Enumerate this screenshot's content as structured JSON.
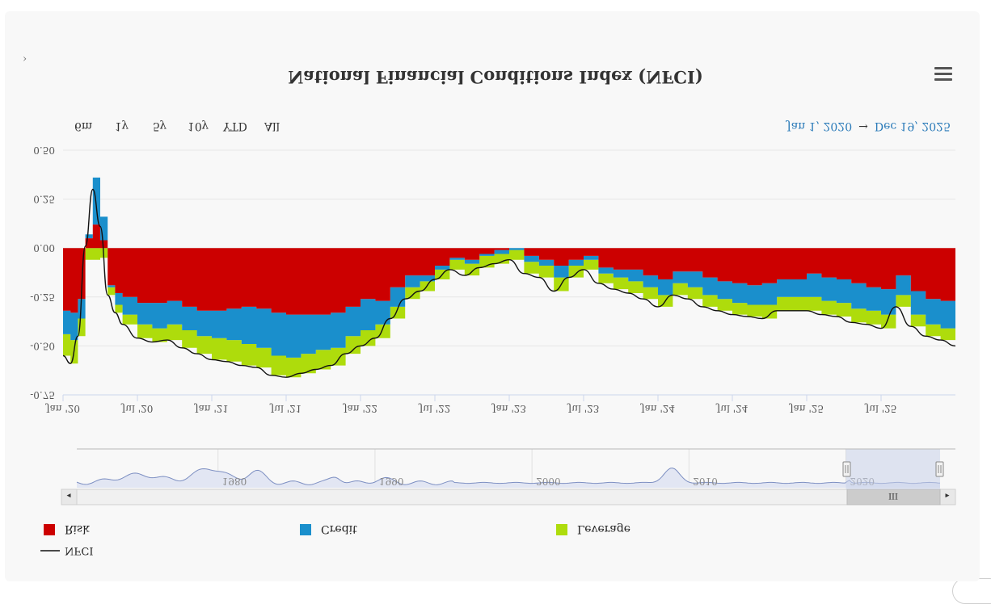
{
  "page": {
    "title": "National Financial Conditions Index (NFCI)",
    "expand_glyph": "›",
    "menu_icon": "hamburger-menu-icon"
  },
  "range_selector": {
    "buttons": [
      "6m",
      "1y",
      "5y",
      "10y",
      "YTD",
      "All"
    ],
    "from": "Jan 1, 2020",
    "arrow": "→",
    "to": "Dec 19, 2025"
  },
  "navigator": {
    "year_labels": [
      "1980",
      "1990",
      "2000",
      "2010",
      "2020"
    ],
    "left_arrow": "◂",
    "right_arrow": "▸",
    "grip": "III",
    "selection_start_year": 2020,
    "selection_end_year": 2026,
    "span": [
      1971,
      2026
    ]
  },
  "colors": {
    "risk": "#cc0000",
    "credit": "#1a8fcc",
    "leverage": "#aedc0c",
    "nfci": "#111111",
    "date_text": "#2b7bb9"
  },
  "chart_data": {
    "type": "area",
    "title": "National Financial Conditions Index (NFCI)",
    "stacked": true,
    "xlabel": "",
    "ylabel": "",
    "ylim": [
      -0.75,
      0.5
    ],
    "y_axis_inverted": true,
    "y_ticks": [
      "-0.75",
      "-0.50",
      "-0.25",
      "0.00",
      "0.25",
      "0.50"
    ],
    "x_ticks": [
      "Jan '20",
      "Jul '20",
      "Jan '21",
      "Jul '21",
      "Jan '22",
      "Jul '22",
      "Jan '23",
      "Jul '23",
      "Jan '24",
      "Jul '24",
      "Jan '25",
      "Jul '25"
    ],
    "x_range": [
      2020.0,
      2026.0
    ],
    "x": [
      2020.0,
      2020.05,
      2020.1,
      2020.15,
      2020.2,
      2020.25,
      2020.3,
      2020.35,
      2020.4,
      2020.5,
      2020.6,
      2020.7,
      2020.8,
      2020.9,
      2021.0,
      2021.1,
      2021.2,
      2021.3,
      2021.4,
      2021.5,
      2021.6,
      2021.7,
      2021.8,
      2021.9,
      2022.0,
      2022.1,
      2022.2,
      2022.3,
      2022.4,
      2022.5,
      2022.6,
      2022.7,
      2022.8,
      2022.9,
      2023.0,
      2023.1,
      2023.2,
      2023.3,
      2023.4,
      2023.5,
      2023.6,
      2023.7,
      2023.8,
      2023.9,
      2024.0,
      2024.1,
      2024.2,
      2024.3,
      2024.4,
      2024.5,
      2024.6,
      2024.7,
      2024.8,
      2024.9,
      2025.0,
      2025.1,
      2025.2,
      2025.3,
      2025.4,
      2025.5,
      2025.6,
      2025.7,
      2025.8,
      2025.9,
      2026.0
    ],
    "legend": [
      "NFCI",
      "Risk",
      "Credit",
      "Leverage"
    ],
    "series": [
      {
        "name": "Risk",
        "values": [
          -0.32,
          -0.33,
          -0.26,
          0.05,
          0.12,
          0.04,
          -0.19,
          -0.23,
          -0.25,
          -0.28,
          -0.28,
          -0.27,
          -0.3,
          -0.32,
          -0.32,
          -0.31,
          -0.3,
          -0.31,
          -0.33,
          -0.34,
          -0.34,
          -0.34,
          -0.33,
          -0.3,
          -0.26,
          -0.27,
          -0.2,
          -0.14,
          -0.14,
          -0.09,
          -0.05,
          -0.06,
          -0.03,
          -0.01,
          0.0,
          -0.04,
          -0.06,
          -0.09,
          -0.06,
          -0.04,
          -0.1,
          -0.11,
          -0.11,
          -0.14,
          -0.16,
          -0.12,
          -0.12,
          -0.15,
          -0.17,
          -0.18,
          -0.19,
          -0.18,
          -0.16,
          -0.16,
          -0.13,
          -0.15,
          -0.16,
          -0.18,
          -0.2,
          -0.21,
          -0.14,
          -0.22,
          -0.26,
          -0.27,
          -0.28
        ]
      },
      {
        "name": "Credit",
        "values": [
          -0.12,
          -0.14,
          -0.1,
          0.02,
          0.24,
          0.12,
          -0.01,
          -0.06,
          -0.09,
          -0.11,
          -0.13,
          -0.12,
          -0.12,
          -0.13,
          -0.14,
          -0.16,
          -0.19,
          -0.2,
          -0.22,
          -0.22,
          -0.2,
          -0.18,
          -0.18,
          -0.15,
          -0.16,
          -0.12,
          -0.1,
          -0.06,
          -0.03,
          -0.02,
          -0.01,
          -0.02,
          -0.01,
          -0.02,
          -0.01,
          -0.03,
          -0.03,
          -0.06,
          -0.03,
          -0.02,
          -0.03,
          -0.04,
          -0.06,
          -0.06,
          -0.08,
          -0.06,
          -0.08,
          -0.09,
          -0.09,
          -0.1,
          -0.1,
          -0.11,
          -0.09,
          -0.09,
          -0.12,
          -0.12,
          -0.12,
          -0.13,
          -0.12,
          -0.13,
          -0.1,
          -0.12,
          -0.13,
          -0.14,
          -0.16
        ]
      },
      {
        "name": "Leverage",
        "values": [
          -0.11,
          -0.12,
          -0.09,
          -0.06,
          -0.06,
          -0.05,
          -0.04,
          -0.04,
          -0.05,
          -0.07,
          -0.07,
          -0.08,
          -0.09,
          -0.09,
          -0.11,
          -0.11,
          -0.11,
          -0.1,
          -0.1,
          -0.1,
          -0.1,
          -0.1,
          -0.09,
          -0.09,
          -0.08,
          -0.07,
          -0.06,
          -0.06,
          -0.05,
          -0.05,
          -0.05,
          -0.06,
          -0.06,
          -0.05,
          -0.05,
          -0.06,
          -0.06,
          -0.07,
          -0.06,
          -0.05,
          -0.05,
          -0.06,
          -0.06,
          -0.06,
          -0.06,
          -0.06,
          -0.06,
          -0.06,
          -0.06,
          -0.06,
          -0.06,
          -0.07,
          -0.07,
          -0.07,
          -0.07,
          -0.07,
          -0.07,
          -0.07,
          -0.07,
          -0.07,
          -0.06,
          -0.06,
          -0.06,
          -0.06,
          -0.06
        ]
      }
    ]
  }
}
